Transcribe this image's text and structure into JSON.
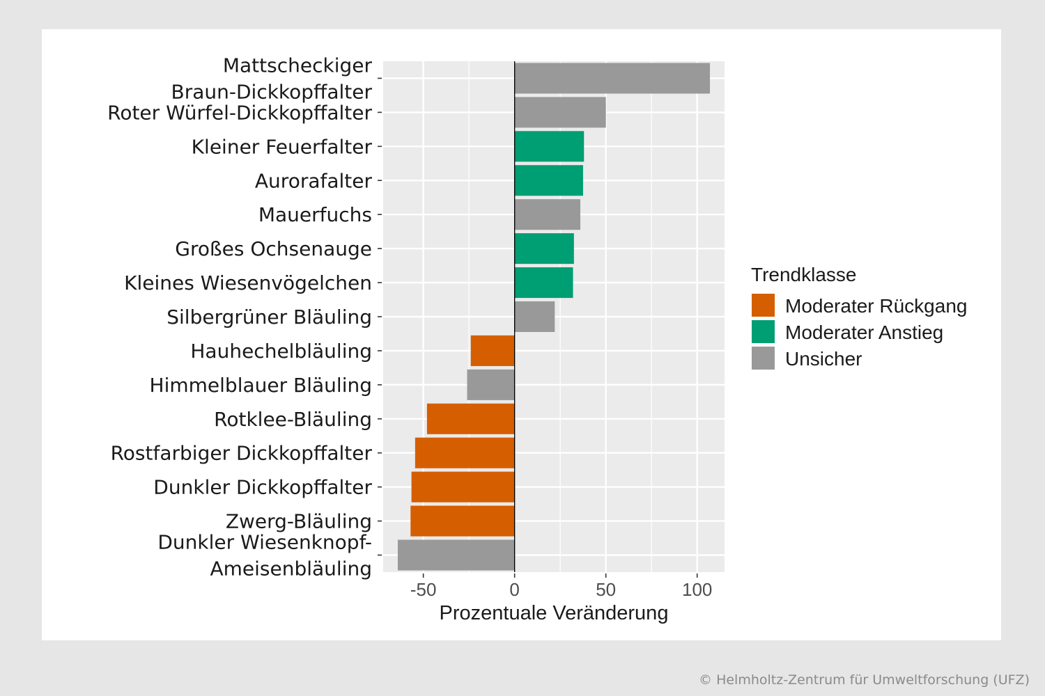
{
  "chart_data": {
    "type": "bar",
    "orientation": "horizontal",
    "xlabel": "Prozentuale Veränderung",
    "xlim": [
      -72,
      115
    ],
    "xticks": [
      -50,
      0,
      50,
      100
    ],
    "xtick_labels": [
      "-50",
      "0",
      "50",
      "100"
    ],
    "legend": {
      "title": "Trendklasse",
      "placement": "right",
      "items": [
        {
          "key": "rueckgang",
          "label": "Moderater Rückgang",
          "color": "#d55e00"
        },
        {
          "key": "anstieg",
          "label": "Moderater Anstieg",
          "color": "#009e73"
        },
        {
          "key": "unsicher",
          "label": "Unsicher",
          "color": "#999999"
        }
      ]
    },
    "categories": [
      {
        "label": [
          "Mattscheckiger",
          "Braun-Dickkopffalter"
        ],
        "value": 107,
        "class": "unsicher"
      },
      {
        "label": [
          "Roter Würfel-Dickkopffalter"
        ],
        "value": 50,
        "class": "unsicher"
      },
      {
        "label": [
          "Kleiner Feuerfalter"
        ],
        "value": 38,
        "class": "anstieg"
      },
      {
        "label": [
          "Aurorafalter"
        ],
        "value": 37.5,
        "class": "anstieg"
      },
      {
        "label": [
          "Mauerfuchs"
        ],
        "value": 36,
        "class": "unsicher"
      },
      {
        "label": [
          "Großes Ochsenauge"
        ],
        "value": 32.5,
        "class": "anstieg"
      },
      {
        "label": [
          "Kleines Wiesenvögelchen"
        ],
        "value": 32,
        "class": "anstieg"
      },
      {
        "label": [
          "Silbergrüner Bläuling"
        ],
        "value": 22,
        "class": "unsicher"
      },
      {
        "label": [
          "Hauhechelbläuling"
        ],
        "value": -24,
        "class": "rueckgang"
      },
      {
        "label": [
          "Himmelblauer Bläuling"
        ],
        "value": -26,
        "class": "unsicher"
      },
      {
        "label": [
          "Rotklee-Bläuling"
        ],
        "value": -48,
        "class": "rueckgang"
      },
      {
        "label": [
          "Rostfarbiger Dickkopffalter"
        ],
        "value": -54.5,
        "class": "rueckgang"
      },
      {
        "label": [
          "Dunkler Dickkopffalter"
        ],
        "value": -56.5,
        "class": "rueckgang"
      },
      {
        "label": [
          "Zwerg-Bläuling"
        ],
        "value": -57,
        "class": "rueckgang"
      },
      {
        "label": [
          "Dunkler Wiesenknopf-",
          "Ameisenbläuling"
        ],
        "value": -64,
        "class": "unsicher"
      }
    ]
  },
  "copyright": "© Helmholtz-Zentrum für Umweltforschung (UFZ)"
}
